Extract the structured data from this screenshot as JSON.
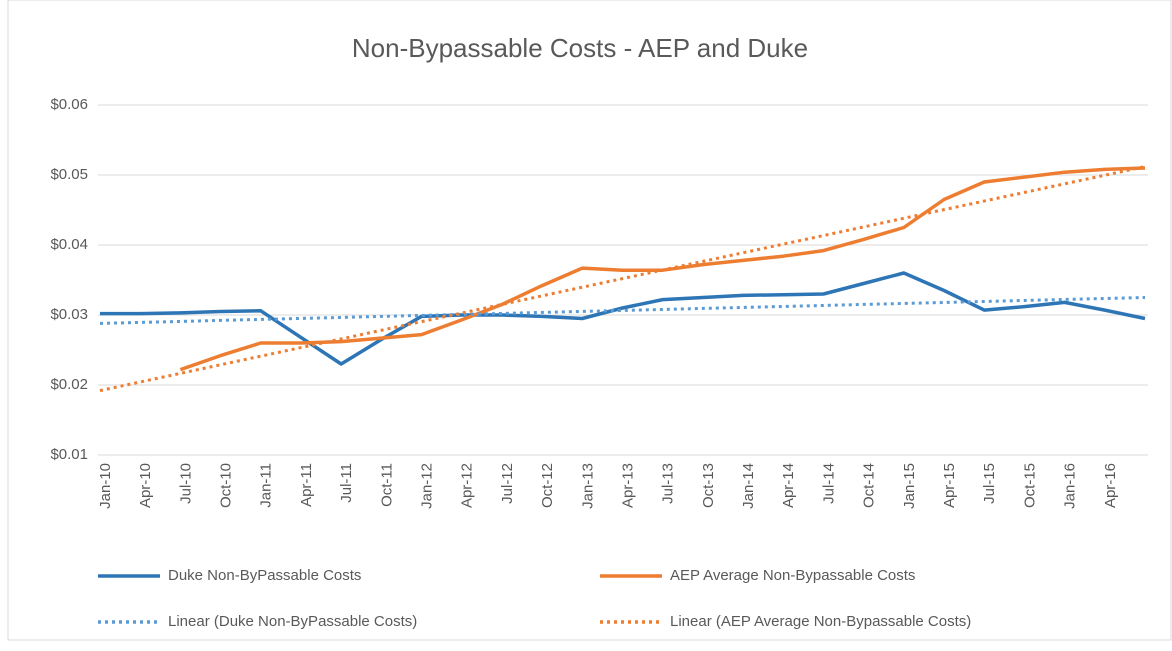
{
  "chart_data": {
    "type": "line",
    "title": "Non-Bypassable Costs - AEP and Duke",
    "categories": [
      "Jan-10",
      "Apr-10",
      "Jul-10",
      "Oct-10",
      "Jan-11",
      "Apr-11",
      "Jul-11",
      "Oct-11",
      "Jan-12",
      "Apr-12",
      "Jul-12",
      "Oct-12",
      "Jan-13",
      "Apr-13",
      "Jul-13",
      "Oct-13",
      "Jan-14",
      "Apr-14",
      "Jul-14",
      "Oct-14",
      "Jan-15",
      "Apr-15",
      "Jul-15",
      "Oct-15",
      "Jan-16",
      "Apr-16",
      null
    ],
    "series": [
      {
        "name": "Duke Non-ByPassable Costs",
        "color": "#2e75b6",
        "style": "solid",
        "values": [
          0.0302,
          0.0302,
          0.0303,
          0.0305,
          0.0306,
          0.0268,
          0.023,
          0.0265,
          0.0298,
          0.03,
          0.03,
          0.0298,
          0.0295,
          0.031,
          0.0322,
          0.0325,
          0.0328,
          0.0329,
          0.033,
          0.0345,
          0.036,
          0.0335,
          0.0307,
          0.0312,
          0.0318,
          0.0307,
          0.0295
        ]
      },
      {
        "name": "AEP Average Non-Bypassable Costs",
        "color": "#ed7d31",
        "style": "solid",
        "values": [
          null,
          null,
          0.0222,
          0.0242,
          0.026,
          0.026,
          0.0262,
          0.0267,
          0.0272,
          0.0293,
          0.0315,
          0.0342,
          0.0367,
          0.0364,
          0.0364,
          0.0372,
          0.0378,
          0.0384,
          0.0392,
          0.0408,
          0.0425,
          0.0465,
          0.049,
          0.0497,
          0.0504,
          0.0508,
          0.051
        ]
      },
      {
        "name": "Linear (Duke Non-ByPassable Costs)",
        "color": "#5b9bd5",
        "style": "dotted",
        "values": [
          0.0288,
          0.02894,
          0.02908,
          0.02923,
          0.02937,
          0.02951,
          0.02965,
          0.0298,
          0.02994,
          0.03008,
          0.03022,
          0.03037,
          0.03051,
          0.03065,
          0.03079,
          0.03094,
          0.03108,
          0.03122,
          0.03136,
          0.03151,
          0.03165,
          0.03179,
          0.03193,
          0.03208,
          0.03222,
          0.03236,
          0.0325
        ]
      },
      {
        "name": "Linear (AEP Average Non-Bypassable Costs)",
        "color": "#ed7d31",
        "style": "dotted",
        "values": [
          0.0192,
          0.02043,
          0.02166,
          0.02289,
          0.02412,
          0.02535,
          0.02658,
          0.02782,
          0.02905,
          0.03028,
          0.03151,
          0.03274,
          0.03397,
          0.0352,
          0.03643,
          0.03766,
          0.03889,
          0.04012,
          0.04135,
          0.04258,
          0.04382,
          0.04505,
          0.04628,
          0.04751,
          0.04874,
          0.04997,
          0.0512
        ]
      }
    ],
    "ylim": [
      0.01,
      0.06
    ],
    "yticks": [
      {
        "value": 0.01,
        "label": "$0.01"
      },
      {
        "value": 0.02,
        "label": "$0.02"
      },
      {
        "value": 0.03,
        "label": "$0.03"
      },
      {
        "value": 0.04,
        "label": "$0.04"
      },
      {
        "value": 0.05,
        "label": "$0.05"
      },
      {
        "value": 0.06,
        "label": "$0.06"
      }
    ],
    "grid": true,
    "legend": "bottom"
  }
}
